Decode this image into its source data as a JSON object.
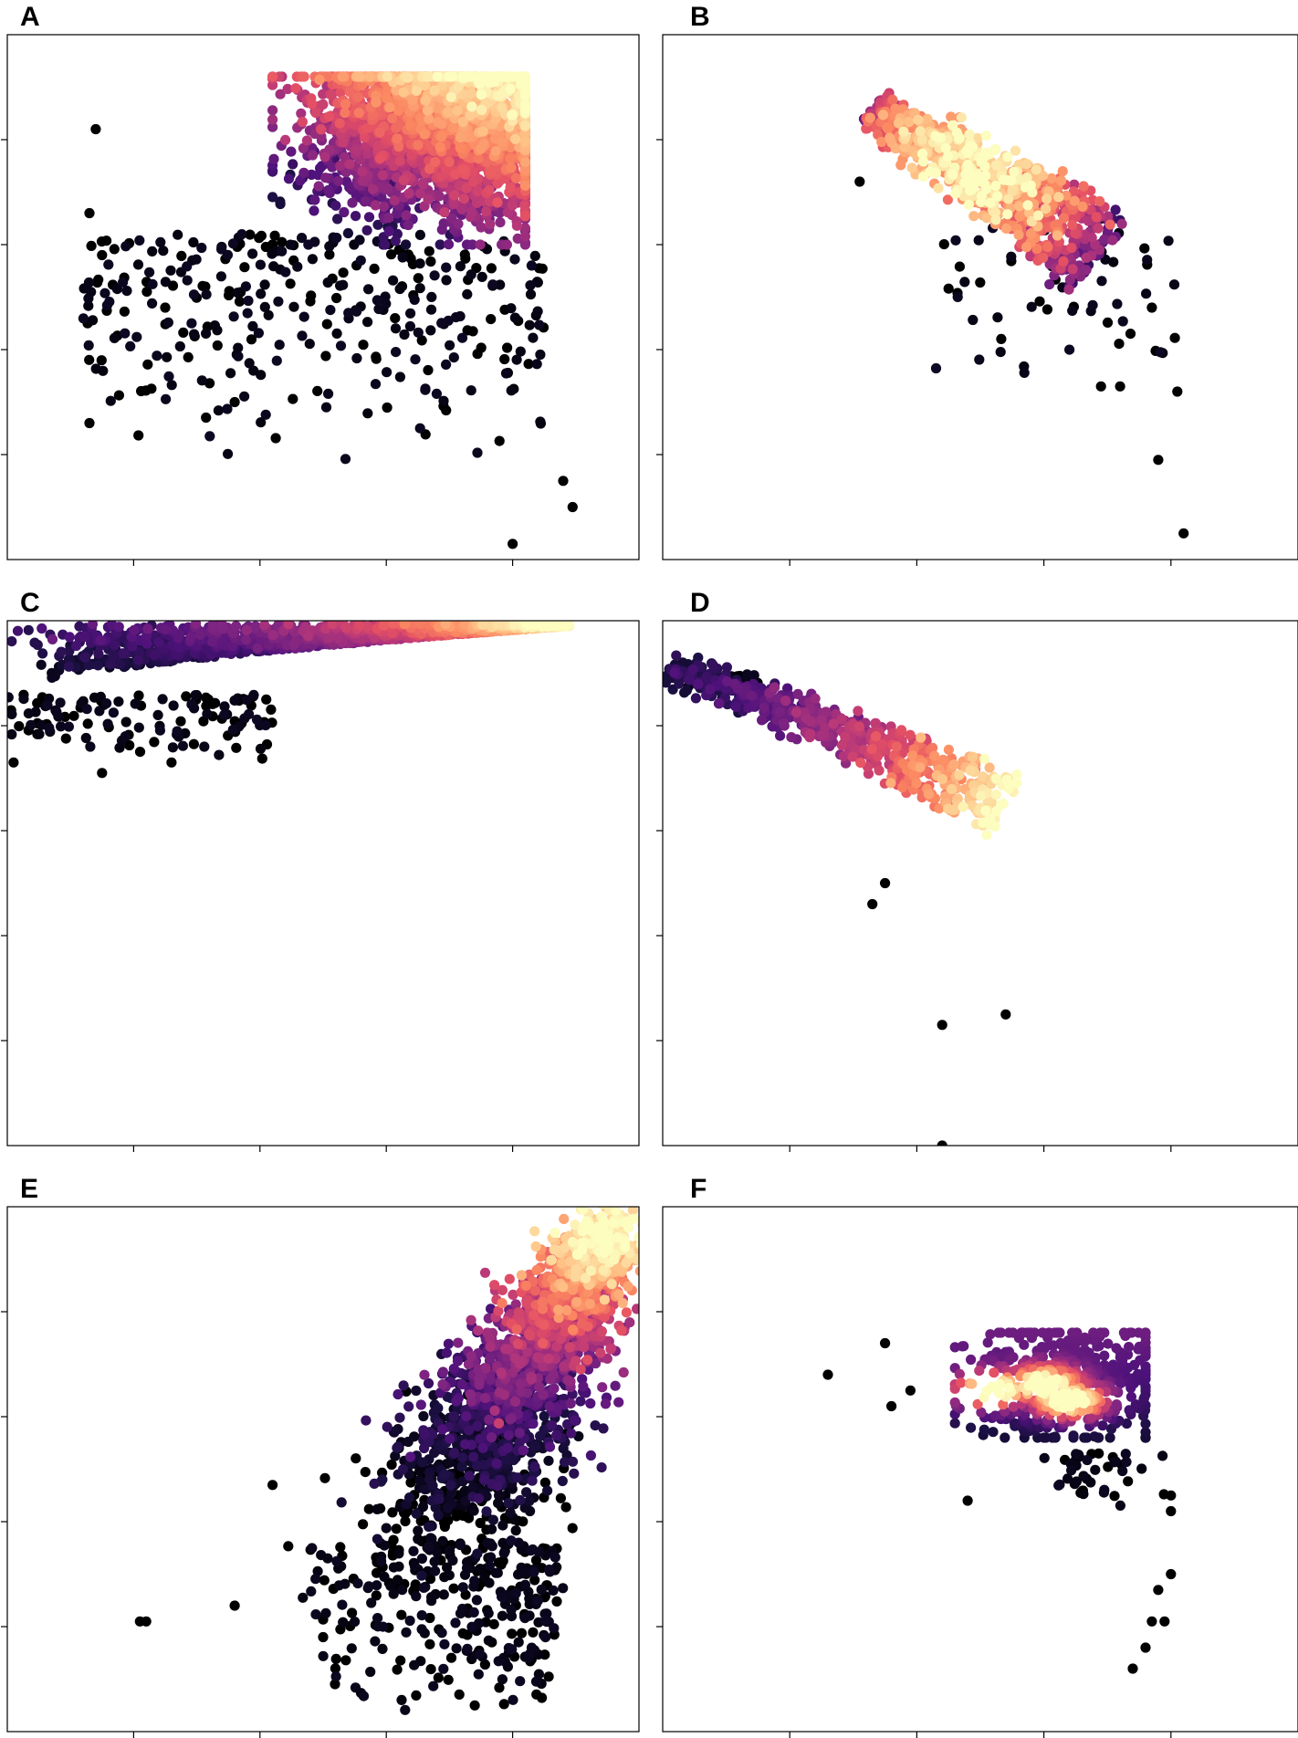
{
  "figure": {
    "colormap_name": "magma",
    "colormap": [
      "#000004",
      "#1c1044",
      "#4f127b",
      "#812581",
      "#b5367a",
      "#e55064",
      "#fb8761",
      "#fec287",
      "#fcfdbf"
    ],
    "marker_color_outlier": "#000000",
    "tick_labels_visible": false
  },
  "chart_data": [
    {
      "panel": "A",
      "type": "scatter",
      "title": "",
      "xlabel": "",
      "ylabel": "",
      "xlim": [
        0,
        10
      ],
      "ylim": [
        0,
        10
      ],
      "xticks": [
        2,
        4,
        6,
        8
      ],
      "yticks": [
        2,
        4,
        6,
        8
      ],
      "grid": false,
      "cloud": {
        "shape": "blob",
        "n": 2600,
        "x": [
          4.2,
          8.2
        ],
        "y": [
          6.0,
          9.2
        ],
        "dense_center": [
          6.8,
          8.3
        ],
        "bright_corner": "top-right",
        "colormap_range": [
          0.0,
          1.0
        ]
      },
      "tail": {
        "n": 320,
        "x": [
          1.2,
          8.5
        ],
        "y": [
          1.8,
          6.2
        ],
        "color_value": 0.0
      },
      "outliers": [
        [
          1.3,
          6.6
        ],
        [
          1.5,
          5.8
        ],
        [
          1.4,
          8.2
        ],
        [
          1.3,
          2.6
        ],
        [
          3.6,
          3.0
        ],
        [
          2.5,
          4.8
        ],
        [
          8.0,
          0.3
        ],
        [
          8.8,
          1.5
        ],
        [
          8.95,
          1.0
        ]
      ]
    },
    {
      "panel": "B",
      "type": "scatter",
      "title": "",
      "xlabel": "",
      "ylabel": "",
      "xlim": [
        0,
        10
      ],
      "ylim": [
        0,
        10
      ],
      "xticks": [
        2,
        4,
        6,
        8
      ],
      "yticks": [
        2,
        4,
        6,
        8
      ],
      "grid": false,
      "cloud": {
        "shape": "band",
        "n": 900,
        "start": [
          3.3,
          8.6
        ],
        "end": [
          6.9,
          6.0
        ],
        "width": 0.45,
        "bright_corner": "middle",
        "colormap_range": [
          0.15,
          1.0
        ]
      },
      "tail": {
        "n": 60,
        "x": [
          4.2,
          8.1
        ],
        "y": [
          3.2,
          6.5
        ],
        "color_value": 0.0
      },
      "outliers": [
        [
          3.1,
          7.2
        ],
        [
          7.7,
          4.8
        ],
        [
          8.1,
          3.2
        ],
        [
          7.8,
          1.9
        ],
        [
          8.2,
          0.5
        ],
        [
          6.9,
          3.3
        ],
        [
          7.2,
          3.3
        ]
      ]
    },
    {
      "panel": "C",
      "type": "scatter",
      "title": "",
      "xlabel": "",
      "ylabel": "",
      "xlim": [
        0,
        10
      ],
      "ylim": [
        0,
        10
      ],
      "xticks": [
        2,
        4,
        6,
        8
      ],
      "yticks": [
        2,
        4,
        6,
        8
      ],
      "grid": false,
      "cloud": {
        "shape": "wedge",
        "n": 1800,
        "x": [
          0.0,
          8.9
        ],
        "y_top": 9.95,
        "y_bottom_at_left": 8.6,
        "y_bottom_at_right": 9.9,
        "bright_corner": "right",
        "colormap_range": [
          0.05,
          1.0
        ]
      },
      "tail": {
        "n": 120,
        "x": [
          0.0,
          4.2
        ],
        "y": [
          7.3,
          8.6
        ],
        "color_value": 0.0
      },
      "outliers": [
        [
          1.5,
          7.1
        ],
        [
          2.6,
          7.3
        ],
        [
          0.1,
          7.3
        ],
        [
          4.1,
          8.5
        ]
      ]
    },
    {
      "panel": "D",
      "type": "scatter",
      "title": "",
      "xlabel": "",
      "ylabel": "",
      "xlim": [
        0,
        10
      ],
      "ylim": [
        0,
        10
      ],
      "xticks": [
        2,
        4,
        6,
        8
      ],
      "yticks": [
        2,
        4,
        6,
        8
      ],
      "grid": false,
      "cloud": {
        "shape": "band",
        "n": 650,
        "start": [
          0.1,
          9.1
        ],
        "end": [
          5.4,
          6.9
        ],
        "width": 0.35,
        "bright_corner": "right",
        "colormap_range": [
          0.1,
          1.0
        ]
      },
      "tail": {
        "n": 25,
        "x": [
          0.3,
          1.5
        ],
        "y": [
          8.7,
          9.0
        ],
        "color_value": 0.0
      },
      "outliers": [
        [
          3.3,
          4.6
        ],
        [
          3.5,
          5.0
        ],
        [
          4.4,
          2.3
        ],
        [
          5.4,
          2.5
        ],
        [
          4.4,
          0.0
        ]
      ]
    },
    {
      "panel": "E",
      "type": "scatter",
      "title": "",
      "xlabel": "",
      "ylabel": "",
      "xlim": [
        0,
        10
      ],
      "ylim": [
        0,
        10
      ],
      "xticks": [
        2,
        4,
        6,
        8
      ],
      "yticks": [
        2,
        4,
        6,
        8
      ],
      "grid": false,
      "cloud": {
        "shape": "comet",
        "n": 2200,
        "tail_point": [
          6.9,
          3.8
        ],
        "head_point": [
          9.6,
          9.6
        ],
        "tail_width": 1.4,
        "head_width": 0.5,
        "bright_corner": "top-right",
        "colormap_range": [
          0.0,
          1.0
        ]
      },
      "tail": {
        "n": 300,
        "x": [
          4.4,
          8.7
        ],
        "y": [
          0.4,
          3.6
        ],
        "color_value": 0.0
      },
      "outliers": [
        [
          2.1,
          2.1
        ],
        [
          2.2,
          2.1
        ],
        [
          3.6,
          2.4
        ],
        [
          4.2,
          4.7
        ],
        [
          7.4,
          0.5
        ],
        [
          5.0,
          1.8
        ]
      ]
    },
    {
      "panel": "F",
      "type": "scatter",
      "title": "",
      "xlabel": "",
      "ylabel": "",
      "xlim": [
        0,
        10
      ],
      "ylim": [
        0,
        10
      ],
      "xticks": [
        2,
        4,
        6,
        8
      ],
      "yticks": [
        2,
        4,
        6,
        8
      ],
      "grid": false,
      "cloud": {
        "shape": "blob",
        "n": 520,
        "x": [
          4.6,
          7.6
        ],
        "y": [
          5.6,
          7.6
        ],
        "dense_center": [
          6.3,
          6.6
        ],
        "bright_corner": "middle",
        "colormap_range": [
          0.1,
          1.0
        ]
      },
      "hotspots": [
        [
          5.2,
          6.5
        ],
        [
          6.4,
          6.3
        ],
        [
          6.0,
          6.6
        ]
      ],
      "tail": {
        "n": 40,
        "x": [
          6.0,
          7.9
        ],
        "y": [
          4.2,
          5.3
        ],
        "color_value": 0.0
      },
      "outliers": [
        [
          2.6,
          6.8
        ],
        [
          3.5,
          7.4
        ],
        [
          3.6,
          6.2
        ],
        [
          3.9,
          6.5
        ],
        [
          4.8,
          4.4
        ],
        [
          7.4,
          1.2
        ],
        [
          7.6,
          1.6
        ],
        [
          7.7,
          2.1
        ],
        [
          7.8,
          2.7
        ],
        [
          8.0,
          3.0
        ],
        [
          7.9,
          2.1
        ],
        [
          8.0,
          4.5
        ],
        [
          8.0,
          4.2
        ]
      ]
    }
  ]
}
